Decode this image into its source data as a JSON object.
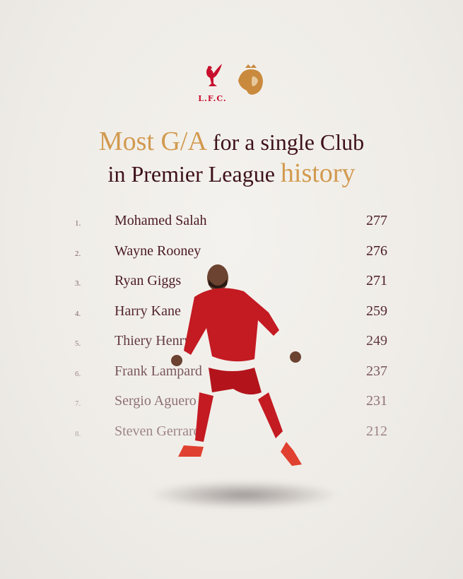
{
  "logos": {
    "club_text": "L.F.C.",
    "club_color": "#c8102e",
    "league_color": "#c98a3d"
  },
  "title": {
    "line1_highlight": "Most G/A",
    "line1_rest": "for a single Club",
    "line2_rest": "in Premier League",
    "line2_highlight": "history",
    "gold": "#d29a4f",
    "dark": "#3d1118"
  },
  "rankings": [
    {
      "rank": "1.",
      "name": "Mohamed Salah",
      "value": "277"
    },
    {
      "rank": "2.",
      "name": "Wayne Rooney",
      "value": "276"
    },
    {
      "rank": "3.",
      "name": "Ryan Giggs",
      "value": "271"
    },
    {
      "rank": "4.",
      "name": "Harry Kane",
      "value": "259"
    },
    {
      "rank": "5.",
      "name": "Thiery Henry",
      "value": "249"
    },
    {
      "rank": "6.",
      "name": "Frank Lampard",
      "value": "237"
    },
    {
      "rank": "7.",
      "name": "Sergio Aguero",
      "value": "231"
    },
    {
      "rank": "8.",
      "name": "Steven Gerrard",
      "value": "212"
    }
  ]
}
